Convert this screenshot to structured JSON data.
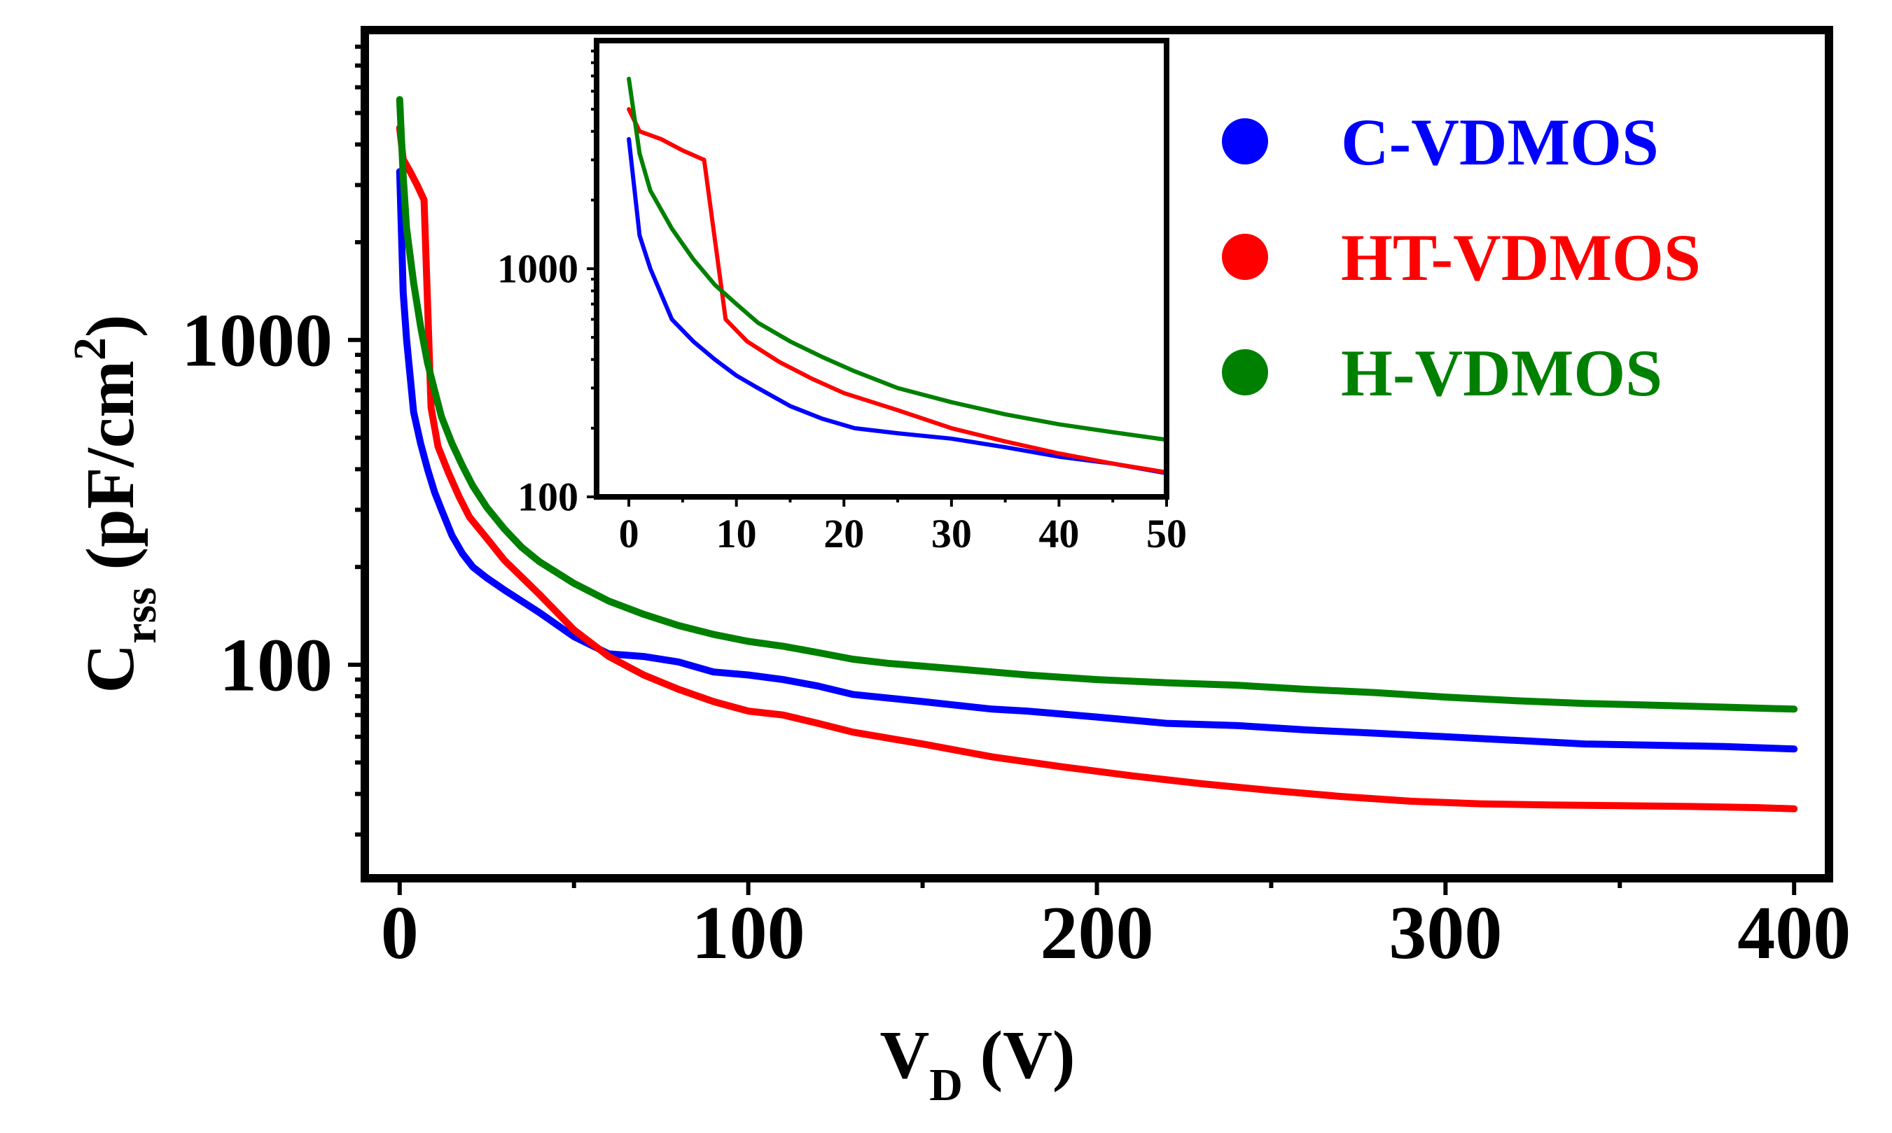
{
  "chart_data": [
    {
      "name": "main",
      "type": "line",
      "x_scale": "linear",
      "y_scale": "log",
      "xlim": [
        -10,
        410
      ],
      "ylim": [
        22,
        9000
      ],
      "xticks": [
        0,
        100,
        200,
        300,
        400
      ],
      "xtick_labels": [
        "0",
        "100",
        "200",
        "300",
        "400"
      ],
      "yticks": [
        100,
        1000
      ],
      "ytick_labels": [
        "100",
        "1000"
      ],
      "xlabel": {
        "main": "V",
        "sub": "D",
        "rest": " (V)"
      },
      "ylabel": {
        "main": "C",
        "sub": "rss",
        "rest": " (pF/cm",
        "sup": "2",
        "close": ")"
      },
      "series": [
        {
          "name": "C-VDMOS",
          "color": "#0000ff",
          "x": [
            0,
            1,
            2,
            4,
            6,
            8,
            10,
            12,
            15,
            18,
            21,
            25,
            30,
            40,
            50,
            60,
            70,
            80,
            90,
            100,
            110,
            120,
            130,
            150,
            170,
            180,
            200,
            220,
            240,
            260,
            280,
            300,
            320,
            340,
            360,
            380,
            400
          ],
          "y": [
            3300,
            1400,
            1000,
            600,
            480,
            400,
            340,
            300,
            250,
            220,
            200,
            185,
            170,
            145,
            122,
            108,
            106,
            102,
            95,
            93,
            90,
            86,
            81,
            77,
            73,
            72,
            69,
            66,
            65,
            63,
            61.5,
            60,
            58.5,
            57,
            56.5,
            56,
            55
          ]
        },
        {
          "name": "HT-VDMOS",
          "color": "#ff0000",
          "x": [
            0,
            1,
            3,
            5,
            7,
            9,
            11,
            14,
            17,
            20,
            25,
            30,
            40,
            50,
            60,
            70,
            80,
            90,
            100,
            110,
            120,
            130,
            150,
            170,
            190,
            210,
            230,
            250,
            270,
            290,
            310,
            330,
            350,
            370,
            390,
            400
          ],
          "y": [
            4500,
            3600,
            3300,
            3000,
            2700,
            620,
            470,
            390,
            330,
            285,
            245,
            210,
            165,
            128,
            106,
            93,
            84,
            77,
            72,
            70,
            66,
            62,
            57,
            52,
            48.5,
            45.5,
            43,
            41,
            39.3,
            38,
            37.3,
            37,
            36.8,
            36.6,
            36.3,
            36
          ]
        },
        {
          "name": "H-VDMOS",
          "color": "#008000",
          "x": [
            0,
            1,
            2,
            4,
            6,
            8,
            10,
            12,
            15,
            18,
            21,
            25,
            30,
            35,
            40,
            50,
            60,
            70,
            80,
            90,
            100,
            110,
            120,
            130,
            140,
            150,
            160,
            180,
            200,
            220,
            240,
            260,
            280,
            300,
            320,
            340,
            360,
            380,
            400
          ],
          "y": [
            5500,
            3200,
            2200,
            1500,
            1100,
            850,
            700,
            580,
            480,
            410,
            355,
            305,
            262,
            230,
            208,
            178,
            157,
            143,
            132,
            124,
            118,
            114,
            109,
            104,
            101,
            99,
            97,
            93,
            90,
            88,
            86.5,
            84,
            82,
            79.5,
            77.5,
            76,
            75,
            74,
            73
          ]
        }
      ]
    },
    {
      "name": "inset",
      "type": "line",
      "x_scale": "linear",
      "y_scale": "log",
      "xlim": [
        -3,
        50
      ],
      "ylim": [
        100,
        10000
      ],
      "xticks": [
        0,
        10,
        20,
        30,
        40,
        50
      ],
      "xtick_labels": [
        "0",
        "10",
        "20",
        "30",
        "40",
        "50"
      ],
      "yticks": [
        100,
        1000
      ],
      "ytick_labels": [
        "100",
        "1000"
      ],
      "series": [
        {
          "name": "C-VDMOS",
          "color": "#0000ff",
          "x": [
            0,
            1,
            2,
            4,
            6,
            8,
            10,
            12,
            15,
            18,
            21,
            25,
            30,
            35,
            40,
            45,
            50
          ],
          "y": [
            3700,
            1400,
            1000,
            600,
            480,
            400,
            340,
            300,
            250,
            220,
            200,
            190,
            180,
            165,
            150,
            140,
            127
          ]
        },
        {
          "name": "HT-VDMOS",
          "color": "#ff0000",
          "x": [
            0,
            1,
            3,
            5,
            7,
            9,
            11,
            14,
            17,
            20,
            25,
            30,
            35,
            40,
            45,
            50
          ],
          "y": [
            5000,
            4000,
            3700,
            3300,
            3000,
            600,
            480,
            390,
            330,
            285,
            240,
            200,
            175,
            155,
            140,
            128
          ]
        },
        {
          "name": "H-VDMOS",
          "color": "#008000",
          "x": [
            0,
            1,
            2,
            4,
            6,
            8,
            10,
            12,
            15,
            18,
            21,
            25,
            30,
            35,
            40,
            45,
            50
          ],
          "y": [
            6800,
            3200,
            2200,
            1500,
            1100,
            850,
            700,
            580,
            480,
            410,
            355,
            300,
            260,
            230,
            208,
            192,
            178
          ]
        }
      ]
    }
  ],
  "legend": {
    "placement": "top-right",
    "entries": [
      {
        "label": "C-VDMOS",
        "color": "#0000ff"
      },
      {
        "label": "HT-VDMOS",
        "color": "#ff0000"
      },
      {
        "label": "H-VDMOS",
        "color": "#008000"
      }
    ]
  }
}
